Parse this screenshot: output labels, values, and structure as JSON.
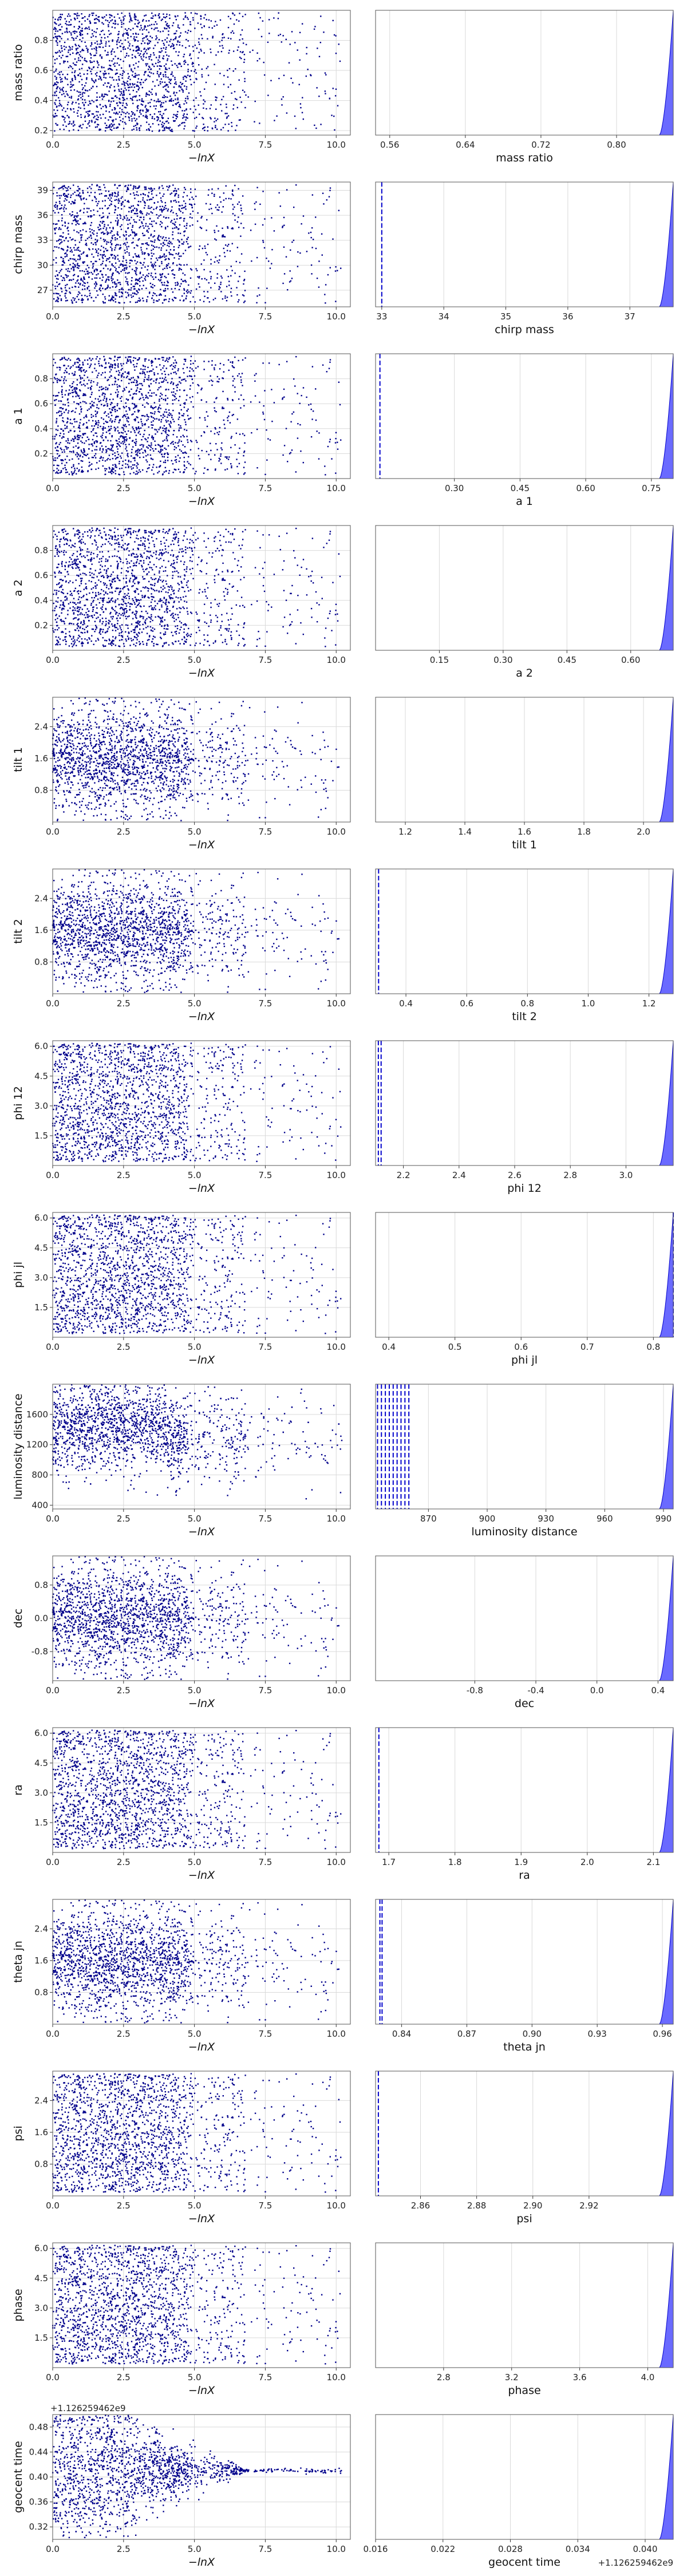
{
  "figure": {
    "marker_color": "#00008b",
    "hist_fill": "#5a5aff",
    "hist_edge": "#0000cc",
    "grid_color": "#d9d9d9",
    "frame_color": "#555555",
    "x_scatter_label": "−lnX",
    "x_scatter_ticks": [
      "0.0",
      "2.5",
      "5.0",
      "7.5",
      "10.0"
    ]
  },
  "chart_data": [
    {
      "type": "scatter",
      "name": "mass ratio",
      "ylabel": "mass ratio",
      "xlabel": "−lnX",
      "xlim": [
        0,
        10.5
      ],
      "ylim": [
        0.17,
        1.0
      ],
      "yticks": [
        "0.2",
        "0.4",
        "0.6",
        "0.8"
      ],
      "ytick_values": [
        0.2,
        0.4,
        0.6,
        0.8
      ],
      "n_points": 1800,
      "trend": "flat"
    },
    {
      "type": "area",
      "name": "mass ratio posterior",
      "xlabel": "mass ratio",
      "xlim": [
        0.545,
        0.86
      ],
      "xticks": [
        "0.56",
        "0.64",
        "0.72",
        "0.80"
      ],
      "xtick_values": [
        0.56,
        0.64,
        0.72,
        0.8
      ],
      "peak_at": "right-edge",
      "dashed_lines": []
    },
    {
      "type": "scatter",
      "name": "chirp mass",
      "ylabel": "chirp mass",
      "xlabel": "−lnX",
      "xlim": [
        0,
        10.5
      ],
      "ylim": [
        25,
        40
      ],
      "yticks": [
        "27",
        "30",
        "33",
        "36",
        "39"
      ],
      "ytick_values": [
        27,
        30,
        33,
        36,
        39
      ],
      "n_points": 1800,
      "trend": "flat"
    },
    {
      "type": "area",
      "name": "chirp mass posterior",
      "xlabel": "chirp mass",
      "xlim": [
        32.9,
        37.7
      ],
      "xticks": [
        "33",
        "34",
        "35",
        "36",
        "37"
      ],
      "xtick_values": [
        33,
        34,
        35,
        36,
        37
      ],
      "peak_at": "right-edge",
      "dashed_lines": [
        33.0
      ]
    },
    {
      "type": "scatter",
      "name": "a 1",
      "ylabel": "a 1",
      "xlabel": "−lnX",
      "xlim": [
        0,
        10.5
      ],
      "ylim": [
        0,
        1.0
      ],
      "yticks": [
        "0.2",
        "0.4",
        "0.6",
        "0.8"
      ],
      "ytick_values": [
        0.2,
        0.4,
        0.6,
        0.8
      ],
      "n_points": 1800,
      "trend": "flat"
    },
    {
      "type": "area",
      "name": "a 1 posterior",
      "xlabel": "a 1",
      "xlim": [
        0.12,
        0.8
      ],
      "xticks": [
        "0.30",
        "0.45",
        "0.60",
        "0.75"
      ],
      "xtick_values": [
        0.3,
        0.45,
        0.6,
        0.75
      ],
      "peak_at": "right-edge",
      "dashed_lines": [
        0.13
      ]
    },
    {
      "type": "scatter",
      "name": "a 2",
      "ylabel": "a 2",
      "xlabel": "−lnX",
      "xlim": [
        0,
        10.5
      ],
      "ylim": [
        0,
        1.0
      ],
      "yticks": [
        "0.2",
        "0.4",
        "0.6",
        "0.8"
      ],
      "ytick_values": [
        0.2,
        0.4,
        0.6,
        0.8
      ],
      "n_points": 1800,
      "trend": "flat"
    },
    {
      "type": "area",
      "name": "a 2 posterior",
      "xlabel": "a 2",
      "xlim": [
        0.0,
        0.7
      ],
      "xticks": [
        "0.15",
        "0.30",
        "0.45",
        "0.60"
      ],
      "xtick_values": [
        0.15,
        0.3,
        0.45,
        0.6
      ],
      "peak_at": "right-edge",
      "dashed_lines": []
    },
    {
      "type": "scatter",
      "name": "tilt 1",
      "ylabel": "tilt 1",
      "xlabel": "−lnX",
      "xlim": [
        0,
        10.5
      ],
      "ylim": [
        0,
        3.14
      ],
      "yticks": [
        "0.8",
        "1.6",
        "2.4"
      ],
      "ytick_values": [
        0.8,
        1.6,
        2.4
      ],
      "n_points": 1800,
      "trend": "centered"
    },
    {
      "type": "area",
      "name": "tilt 1 posterior",
      "xlabel": "tilt 1",
      "xlim": [
        1.1,
        2.1
      ],
      "xticks": [
        "1.2",
        "1.4",
        "1.6",
        "1.8",
        "2.0"
      ],
      "xtick_values": [
        1.2,
        1.4,
        1.6,
        1.8,
        2.0
      ],
      "peak_at": "right-edge",
      "dashed_lines": []
    },
    {
      "type": "scatter",
      "name": "tilt 2",
      "ylabel": "tilt 2",
      "xlabel": "−lnX",
      "xlim": [
        0,
        10.5
      ],
      "ylim": [
        0,
        3.14
      ],
      "yticks": [
        "0.8",
        "1.6",
        "2.4"
      ],
      "ytick_values": [
        0.8,
        1.6,
        2.4
      ],
      "n_points": 1800,
      "trend": "centered"
    },
    {
      "type": "area",
      "name": "tilt 2 posterior",
      "xlabel": "tilt 2",
      "xlim": [
        0.3,
        1.28
      ],
      "xticks": [
        "0.4",
        "0.6",
        "0.8",
        "1.0",
        "1.2"
      ],
      "xtick_values": [
        0.4,
        0.6,
        0.8,
        1.0,
        1.2
      ],
      "peak_at": "right-edge",
      "dashed_lines": [
        0.31
      ]
    },
    {
      "type": "scatter",
      "name": "phi 12",
      "ylabel": "phi 12",
      "xlabel": "−lnX",
      "xlim": [
        0,
        10.5
      ],
      "ylim": [
        0,
        6.28
      ],
      "yticks": [
        "1.5",
        "3.0",
        "4.5",
        "6.0"
      ],
      "ytick_values": [
        1.5,
        3.0,
        4.5,
        6.0
      ],
      "n_points": 1800,
      "trend": "flat"
    },
    {
      "type": "area",
      "name": "phi 12 posterior",
      "xlabel": "phi 12",
      "xlim": [
        2.1,
        3.17
      ],
      "xticks": [
        "2.2",
        "2.4",
        "2.6",
        "2.8",
        "3.0"
      ],
      "xtick_values": [
        2.2,
        2.4,
        2.6,
        2.8,
        3.0
      ],
      "peak_at": "right-edge",
      "dashed_lines": [
        2.11,
        2.12
      ]
    },
    {
      "type": "scatter",
      "name": "phi jl",
      "ylabel": "phi jl",
      "xlabel": "−lnX",
      "xlim": [
        0,
        10.5
      ],
      "ylim": [
        0,
        6.28
      ],
      "yticks": [
        "1.5",
        "3.0",
        "4.5",
        "6.0"
      ],
      "ytick_values": [
        1.5,
        3.0,
        4.5,
        6.0
      ],
      "n_points": 1800,
      "trend": "flat"
    },
    {
      "type": "area",
      "name": "phi jl posterior",
      "xlabel": "phi jl",
      "xlim": [
        0.38,
        0.83
      ],
      "xticks": [
        "0.4",
        "0.5",
        "0.6",
        "0.7",
        "0.8"
      ],
      "xtick_values": [
        0.4,
        0.5,
        0.6,
        0.7,
        0.8
      ],
      "peak_at": "right-edge",
      "dashed_lines": [
        0.83
      ]
    },
    {
      "type": "scatter",
      "name": "luminosity distance",
      "ylabel": "luminosity distance",
      "xlabel": "−lnX",
      "xlim": [
        0,
        10.5
      ],
      "ylim": [
        350,
        2000
      ],
      "yticks": [
        "400",
        "800",
        "1200",
        "1600"
      ],
      "ytick_values": [
        400,
        800,
        1200,
        1600
      ],
      "n_points": 1800,
      "trend": "rising"
    },
    {
      "type": "area",
      "name": "luminosity distance posterior",
      "xlabel": "luminosity distance",
      "xlim": [
        843,
        995
      ],
      "xticks": [
        "870",
        "900",
        "930",
        "960",
        "990"
      ],
      "xtick_values": [
        870,
        900,
        930,
        960,
        990
      ],
      "peak_at": "right-edge",
      "dashed_lines": [
        844,
        846,
        848,
        850,
        852,
        854,
        856,
        858,
        860
      ]
    },
    {
      "type": "scatter",
      "name": "dec",
      "ylabel": "dec",
      "xlabel": "−lnX",
      "xlim": [
        0,
        10.5
      ],
      "ylim": [
        -1.5,
        1.5
      ],
      "yticks": [
        "-0.8",
        "0.0",
        "0.8"
      ],
      "ytick_values": [
        -0.8,
        0.0,
        0.8
      ],
      "n_points": 1800,
      "trend": "centered"
    },
    {
      "type": "area",
      "name": "dec posterior",
      "xlabel": "dec",
      "xlim": [
        -1.45,
        0.5
      ],
      "xticks": [
        "-0.8",
        "-0.4",
        "0.0",
        "0.4"
      ],
      "xtick_values": [
        -0.8,
        -0.4,
        0.0,
        0.4
      ],
      "peak_at": "right-edge",
      "dashed_lines": []
    },
    {
      "type": "scatter",
      "name": "ra",
      "ylabel": "ra",
      "xlabel": "−lnX",
      "xlim": [
        0,
        10.5
      ],
      "ylim": [
        0,
        6.28
      ],
      "yticks": [
        "1.5",
        "3.0",
        "4.5",
        "6.0"
      ],
      "ytick_values": [
        1.5,
        3.0,
        4.5,
        6.0
      ],
      "n_points": 1800,
      "trend": "flat"
    },
    {
      "type": "area",
      "name": "ra posterior",
      "xlabel": "ra",
      "xlim": [
        1.68,
        2.13
      ],
      "xticks": [
        "1.7",
        "1.8",
        "1.9",
        "2.0",
        "2.1"
      ],
      "xtick_values": [
        1.7,
        1.8,
        1.9,
        2.0,
        2.1
      ],
      "peak_at": "right-edge",
      "dashed_lines": [
        1.685
      ]
    },
    {
      "type": "scatter",
      "name": "theta jn",
      "ylabel": "theta jn",
      "xlabel": "−lnX",
      "xlim": [
        0,
        10.5
      ],
      "ylim": [
        0,
        3.14
      ],
      "yticks": [
        "0.8",
        "1.6",
        "2.4"
      ],
      "ytick_values": [
        0.8,
        1.6,
        2.4
      ],
      "n_points": 1800,
      "trend": "centered"
    },
    {
      "type": "area",
      "name": "theta jn posterior",
      "xlabel": "theta jn",
      "xlim": [
        0.828,
        0.965
      ],
      "xticks": [
        "0.84",
        "0.87",
        "0.90",
        "0.93",
        "0.96"
      ],
      "xtick_values": [
        0.84,
        0.87,
        0.9,
        0.93,
        0.96
      ],
      "peak_at": "right-edge",
      "dashed_lines": [
        0.83,
        0.831
      ]
    },
    {
      "type": "scatter",
      "name": "psi",
      "ylabel": "psi",
      "xlabel": "−lnX",
      "xlim": [
        0,
        10.5
      ],
      "ylim": [
        0,
        3.14
      ],
      "yticks": [
        "0.8",
        "1.6",
        "2.4"
      ],
      "ytick_values": [
        0.8,
        1.6,
        2.4
      ],
      "n_points": 1800,
      "trend": "flat"
    },
    {
      "type": "area",
      "name": "psi posterior",
      "xlabel": "psi",
      "xlim": [
        2.844,
        2.95
      ],
      "xticks": [
        "2.86",
        "2.88",
        "2.90",
        "2.92"
      ],
      "xtick_values": [
        2.86,
        2.88,
        2.9,
        2.92
      ],
      "peak_at": "right-edge",
      "dashed_lines": [
        2.845
      ]
    },
    {
      "type": "scatter",
      "name": "phase",
      "ylabel": "phase",
      "xlabel": "−lnX",
      "xlim": [
        0,
        10.5
      ],
      "ylim": [
        0,
        6.28
      ],
      "yticks": [
        "1.5",
        "3.0",
        "4.5",
        "6.0"
      ],
      "ytick_values": [
        1.5,
        3.0,
        4.5,
        6.0
      ],
      "n_points": 1800,
      "trend": "flat"
    },
    {
      "type": "area",
      "name": "phase posterior",
      "xlabel": "phase",
      "xlim": [
        2.4,
        4.15
      ],
      "xticks": [
        "2.8",
        "3.2",
        "3.6",
        "4.0"
      ],
      "xtick_values": [
        2.8,
        3.2,
        3.6,
        4.0
      ],
      "peak_at": "right-edge",
      "dashed_lines": []
    },
    {
      "type": "scatter",
      "name": "geocent time",
      "ylabel": "geocent time",
      "xlabel": "−lnX",
      "xlim": [
        0,
        10.5
      ],
      "ylim": [
        0.3,
        0.5
      ],
      "yticks": [
        "0.32",
        "0.36",
        "0.40",
        "0.44",
        "0.48"
      ],
      "ytick_values": [
        0.32,
        0.36,
        0.4,
        0.44,
        0.48
      ],
      "y_offset_label": "+1.126259462e9",
      "n_points": 1800,
      "trend": "funnel"
    },
    {
      "type": "area",
      "name": "geocent time posterior",
      "xlabel": "geocent time",
      "xlim": [
        0.016,
        0.0425
      ],
      "xticks": [
        "0.016",
        "0.022",
        "0.028",
        "0.034",
        "0.040"
      ],
      "xtick_values": [
        0.016,
        0.022,
        0.028,
        0.034,
        0.04
      ],
      "x_offset_label": "+1.126259462e9",
      "peak_at": "right-edge",
      "dashed_lines": []
    }
  ]
}
